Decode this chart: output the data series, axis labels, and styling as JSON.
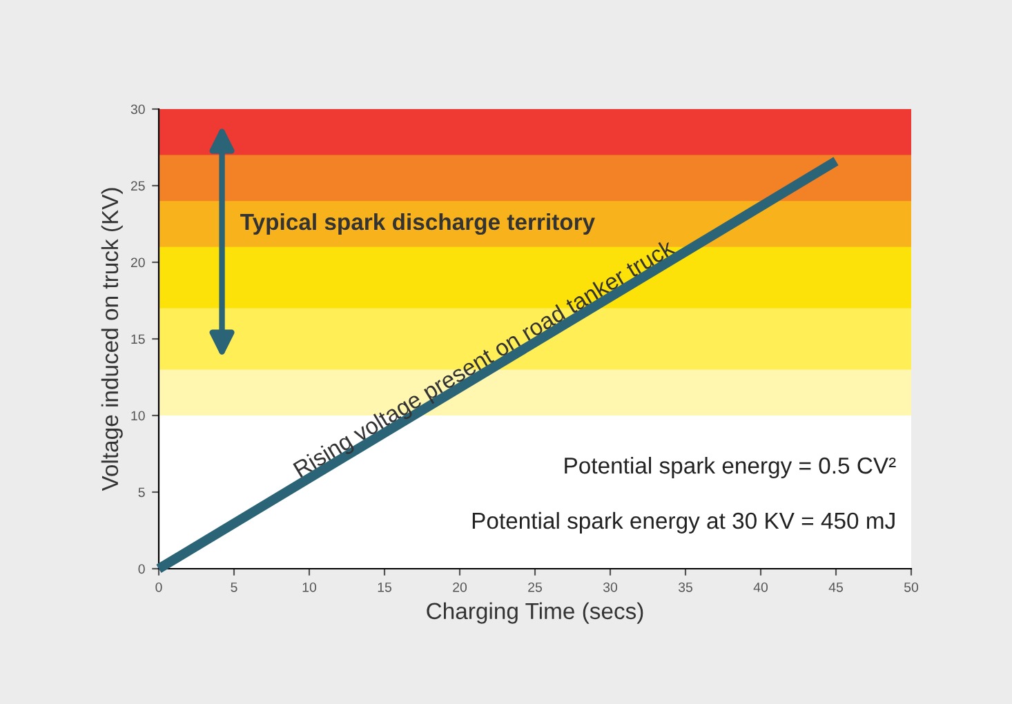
{
  "chart_data": {
    "type": "line",
    "xlabel": "Charging Time (secs)",
    "ylabel": "Voltage induced on truck (KV)",
    "x": [
      0,
      45
    ],
    "series": [
      {
        "color": "#2b6377",
        "values": [
          0,
          26.6
        ]
      }
    ],
    "xlim": [
      0,
      50
    ],
    "xticks": [
      0,
      5,
      10,
      15,
      20,
      25,
      30,
      35,
      40,
      45,
      50
    ],
    "ylim": [
      0,
      30
    ],
    "yticks": [
      0,
      5,
      10,
      15,
      20,
      25,
      30
    ],
    "grid": false,
    "marker": "none",
    "line_style": "solid",
    "bands": [
      {
        "axis": "y",
        "from": 10,
        "to": 30,
        "label": null,
        "color": "#fff6b0"
      },
      {
        "axis": "y",
        "from": 13,
        "to": 30,
        "label": null,
        "color": "#ffee55"
      },
      {
        "axis": "y",
        "from": 17,
        "to": 30,
        "label": null,
        "color": "#fde20a"
      },
      {
        "axis": "y",
        "from": 21,
        "to": 30,
        "label": null,
        "color": "#f8b21c"
      },
      {
        "axis": "y",
        "from": 24,
        "to": 30,
        "label": null,
        "color": "#f38227"
      },
      {
        "axis": "y",
        "from": 27,
        "to": 30,
        "label": null,
        "color": "#ee3a33"
      }
    ],
    "annotations": [
      "Typical spark discharge territory",
      {
        "text": "Rising voltage present on road tanker truck",
        "x": 22,
        "y": 13
      },
      "Potential spark energy = 0.5 CV²",
      "Potential spark energy at 30 KV = 450 mJ"
    ]
  }
}
